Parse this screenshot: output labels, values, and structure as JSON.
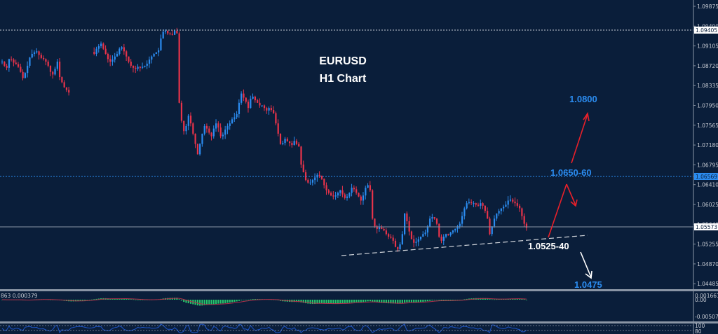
{
  "chart_data": {
    "type": "candlestick",
    "title": "EURUSD",
    "subtitle": "H1 Chart",
    "symbol": "EURUSD",
    "timeframe": "H1",
    "price_axis": {
      "ticks": [
        "1.09875",
        "1.09490",
        "1.09105",
        "1.08720",
        "1.08335",
        "1.07950",
        "1.07565",
        "1.07180",
        "1.06795",
        "1.06410",
        "1.06025",
        "1.05640",
        "1.05255",
        "1.04870",
        "1.04485"
      ],
      "ylim": [
        1.044,
        1.0995
      ]
    },
    "highlighted_prices": [
      {
        "value": "1.09405",
        "style": "white-box",
        "line": "dotted-white"
      },
      {
        "value": "1.06569",
        "style": "blue-box",
        "line": "dotted-blue"
      },
      {
        "value": "1.05573",
        "style": "white-box",
        "line": "solid-gray"
      }
    ],
    "annotations": [
      {
        "text": "1.0800",
        "color": "#2b8cf0"
      },
      {
        "text": "1.0650-60",
        "color": "#2b8cf0"
      },
      {
        "text": "1.0525-40",
        "color": "#ffffff"
      },
      {
        "text": "1.0475",
        "color": "#2b8cf0"
      }
    ],
    "trendline": {
      "style": "dashed-white",
      "from_price": 1.0508,
      "to_price": 1.0543,
      "label": "rising support"
    },
    "arrows": [
      {
        "color": "#e8202a",
        "direction": "up",
        "target": "1.0650-60"
      },
      {
        "color": "#e8202a",
        "direction": "down-from-1.0650"
      },
      {
        "color": "#e8202a",
        "direction": "up",
        "target": "1.0800"
      },
      {
        "color": "#ffffff",
        "direction": "down",
        "target": "1.0475"
      }
    ],
    "price_path_close": [
      1.088,
      1.0872,
      1.0868,
      1.0885,
      1.0884,
      1.0878,
      1.0875,
      1.087,
      1.086,
      1.0848,
      1.0858,
      1.0872,
      1.0888,
      1.0895,
      1.0898,
      1.09,
      1.0893,
      1.0887,
      1.0885,
      1.088,
      1.0872,
      1.086,
      1.0855,
      1.0866,
      1.088,
      1.085,
      1.084,
      1.083,
      1.0825,
      1.082,
      null,
      null,
      null,
      null,
      null,
      null,
      null,
      null,
      null,
      null,
      1.0895,
      1.0905,
      1.091,
      1.0915,
      1.0905,
      1.0895,
      1.0885,
      1.088,
      1.0884,
      1.089,
      1.0895,
      1.0905,
      1.0908,
      1.09,
      1.089,
      1.088,
      1.0872,
      1.0868,
      1.0866,
      1.087,
      1.0868,
      1.087,
      1.0872,
      1.0876,
      1.0884,
      1.089,
      1.0895,
      1.0898,
      1.0902,
      1.0925,
      1.0938,
      1.094,
      1.0935,
      1.0934,
      1.0932,
      1.094,
      1.0935,
      1.08,
      1.0765,
      1.0745,
      1.0755,
      1.0775,
      1.076,
      1.074,
      1.072,
      1.07,
      1.072,
      1.074,
      1.0755,
      1.075,
      1.0742,
      1.0735,
      1.075,
      1.076,
      1.0752,
      1.0735,
      1.0738,
      1.0748,
      1.0755,
      1.076,
      1.0768,
      1.0772,
      1.0778,
      1.08,
      1.0818,
      1.081,
      1.0802,
      1.079,
      1.0808,
      1.0812,
      1.0805,
      1.08,
      1.0795,
      1.0795,
      1.079,
      1.0785,
      1.079,
      1.0786,
      1.078,
      1.076,
      1.074,
      1.072,
      1.0722,
      1.073,
      1.0725,
      1.0722,
      1.0718,
      1.0726,
      1.072,
      1.0715,
      1.068,
      1.0665,
      1.065,
      1.0645,
      1.0645,
      1.065,
      1.0655,
      1.066,
      1.0658,
      1.0652,
      1.064,
      1.063,
      1.0625,
      1.062,
      1.0618,
      1.062,
      1.0625,
      1.063,
      1.0622,
      1.0615,
      1.0618,
      1.0625,
      1.0635,
      1.0632,
      1.0625,
      1.0618,
      1.061,
      1.062,
      1.0635,
      1.064,
      1.063,
      1.0575,
      1.056,
      1.0555,
      1.0558,
      1.0555,
      1.0552,
      1.0545,
      1.054,
      1.0538,
      1.0532,
      1.052,
      1.0515,
      1.0525,
      1.0545,
      1.0585,
      1.057,
      1.055,
      1.0535,
      1.0528,
      1.053,
      1.0535,
      1.054,
      1.0545,
      1.0548,
      1.056,
      1.0575,
      1.0578,
      1.0575,
      1.0565,
      1.054,
      1.0532,
      1.054,
      1.0545,
      1.0543,
      1.0548,
      1.0552,
      1.0555,
      1.056,
      1.0565,
      1.058,
      1.0595,
      1.0605,
      1.0607,
      1.0605,
      1.0605,
      1.0602,
      1.06,
      1.0605,
      1.06,
      1.059,
      1.0575,
      1.0545,
      1.056,
      1.0575,
      1.0585,
      1.059,
      1.0595,
      1.0598,
      1.0602,
      1.061,
      1.0612,
      1.0608,
      1.0605,
      1.06,
      1.0595,
      1.058,
      1.0565,
      1.0557
    ],
    "indicators": [
      {
        "name": "MACD",
        "label": "863 0.000379",
        "ticks": [
          "0.001661",
          "0.00",
          "-0.005073"
        ],
        "histogram_color": "#27c46b",
        "signal_color": "#b0304a"
      },
      {
        "name": "oscillator",
        "ticks": [
          "100",
          "80"
        ],
        "line_color": "#1f56c8",
        "levels": "dotted"
      }
    ],
    "colors": {
      "background": "#0a1e3a",
      "bull": "#2b8cf0",
      "bear": "#e8334a",
      "axis_text": "#c8ccd4",
      "separator": "#8a95a5"
    },
    "grid": false
  },
  "header": {
    "symbol": "EURUSD",
    "timeframe": "H1 Chart"
  },
  "axis": {
    "ticks": [
      "1.09875",
      "1.09490",
      "1.09105",
      "1.08720",
      "1.08335",
      "1.07950",
      "1.07565",
      "1.07180",
      "1.06795",
      "1.06410",
      "1.06025",
      "1.05640",
      "1.05255",
      "1.04870",
      "1.04485"
    ],
    "tag_top": "1.09405",
    "tag_mid": "1.06569",
    "tag_cur": "1.05573"
  },
  "annotations": {
    "target_up_high": "1.0800",
    "resistance": "1.0650-60",
    "support": "1.0525-40",
    "target_down": "1.0475"
  },
  "macd": {
    "label": "863 0.000379",
    "tick_top": "0.001661",
    "tick_zero": "0.00",
    "tick_bottom": "-0.005073"
  },
  "osc": {
    "tick_top": "100",
    "tick_bottom": "80"
  }
}
